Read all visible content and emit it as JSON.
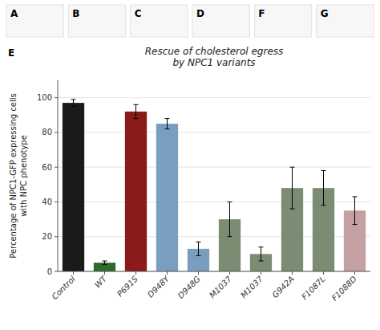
{
  "chart_data": {
    "type": "bar",
    "title": "Rescue of cholesterol egress\nby NPC1 variants",
    "y_label": "Percentage of NPC1-GFP expressing cells\nwith NPC phenotype",
    "categories": [
      "Control",
      "WT",
      "P691S",
      "D948Y",
      "D948G",
      "M1037",
      "M1037",
      "G942A",
      "F1087L",
      "F1088D"
    ],
    "values": [
      97,
      5,
      92,
      85,
      13,
      30,
      10,
      48,
      48,
      35
    ],
    "errors": [
      2,
      1,
      4,
      3,
      4,
      10,
      4,
      12,
      10,
      8
    ],
    "colors": [
      "#1a1a1a",
      "#2e6b2e",
      "#8b1a1a",
      "#7a9ec0",
      "#7a9ec0",
      "#7a8c72",
      "#7a8c72",
      "#7a8c72",
      "#7a8c72",
      "#c4a0a0"
    ],
    "ylim": [
      0,
      110
    ],
    "yticks": [
      0,
      20,
      40,
      60,
      80,
      100
    ],
    "grid": true,
    "annotations": [
      "A",
      "B",
      "C",
      "D",
      "F",
      "G",
      "E"
    ]
  }
}
